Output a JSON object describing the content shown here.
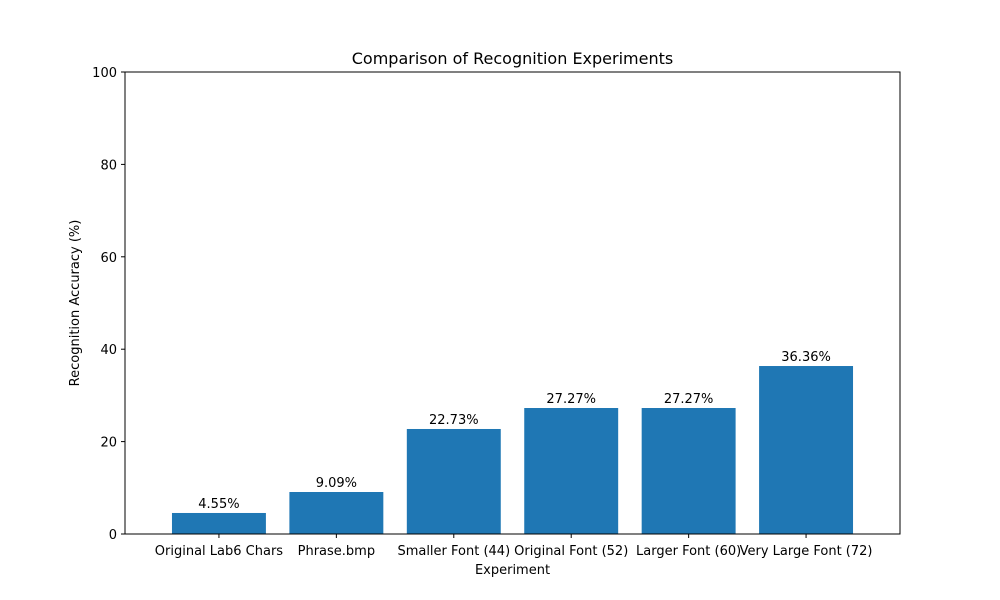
{
  "chart_data": {
    "type": "bar",
    "title": "Comparison of Recognition Experiments",
    "xlabel": "Experiment",
    "ylabel": "Recognition Accuracy (%)",
    "categories": [
      "Original Lab6 Chars",
      "Phrase.bmp",
      "Smaller Font (44)",
      "Original Font (52)",
      "Larger Font (60)",
      "Very Large Font (72)"
    ],
    "values": [
      4.55,
      9.09,
      22.73,
      27.27,
      27.27,
      36.36
    ],
    "value_labels": [
      "4.55%",
      "9.09%",
      "22.73%",
      "27.27%",
      "27.27%",
      "36.36%"
    ],
    "ylim": [
      0,
      100
    ],
    "yticks": [
      0,
      20,
      40,
      60,
      80,
      100
    ],
    "bar_color": "#1f77b4",
    "grid": false,
    "legend": "none"
  }
}
